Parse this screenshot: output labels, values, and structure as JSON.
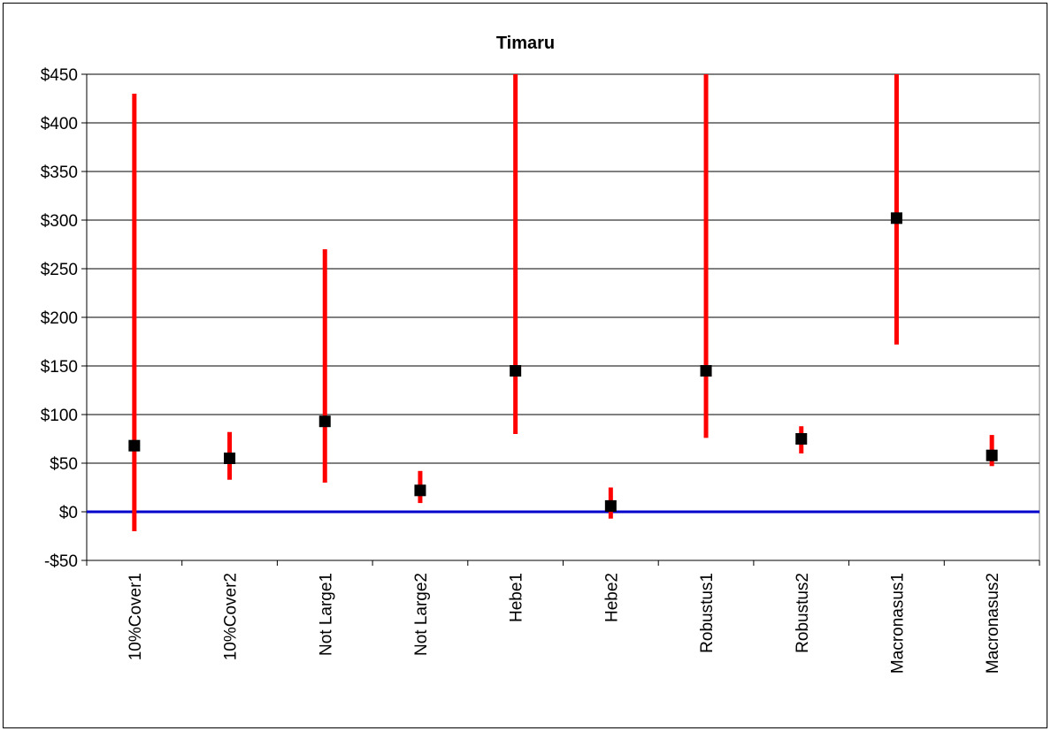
{
  "chart_data": {
    "type": "scatter",
    "title": "Timaru",
    "xlabel": "",
    "ylabel": "",
    "categories": [
      "10%Cover1",
      "10%Cover2",
      "Not Large1",
      "Not Large2",
      "Hebe1",
      "Hebe2",
      "Robustus1",
      "Robustus2",
      "Macronasus1",
      "Macronasus2"
    ],
    "series": [
      {
        "values": [
          68,
          55,
          93,
          22,
          145,
          6,
          145,
          75,
          302,
          58
        ]
      }
    ],
    "error_bars": {
      "low": [
        -20,
        33,
        30,
        9,
        80,
        -7,
        76,
        60,
        172,
        47
      ],
      "high": [
        430,
        82,
        270,
        42,
        450,
        25,
        450,
        88,
        450,
        79
      ]
    },
    "ylim": [
      -50,
      450
    ],
    "yticks": [
      -50,
      0,
      50,
      100,
      150,
      200,
      250,
      300,
      350,
      400,
      450
    ],
    "ytick_labels": [
      "-$50",
      "$0",
      "$50",
      "$100",
      "$150",
      "$200",
      "$250",
      "$300",
      "$350",
      "$400",
      "$450"
    ],
    "grid": true,
    "zero_line": true,
    "colors": {
      "error_bar": "#ff0000",
      "marker": "#000000",
      "zero_line": "#0000cc",
      "grid": "#000000"
    }
  }
}
